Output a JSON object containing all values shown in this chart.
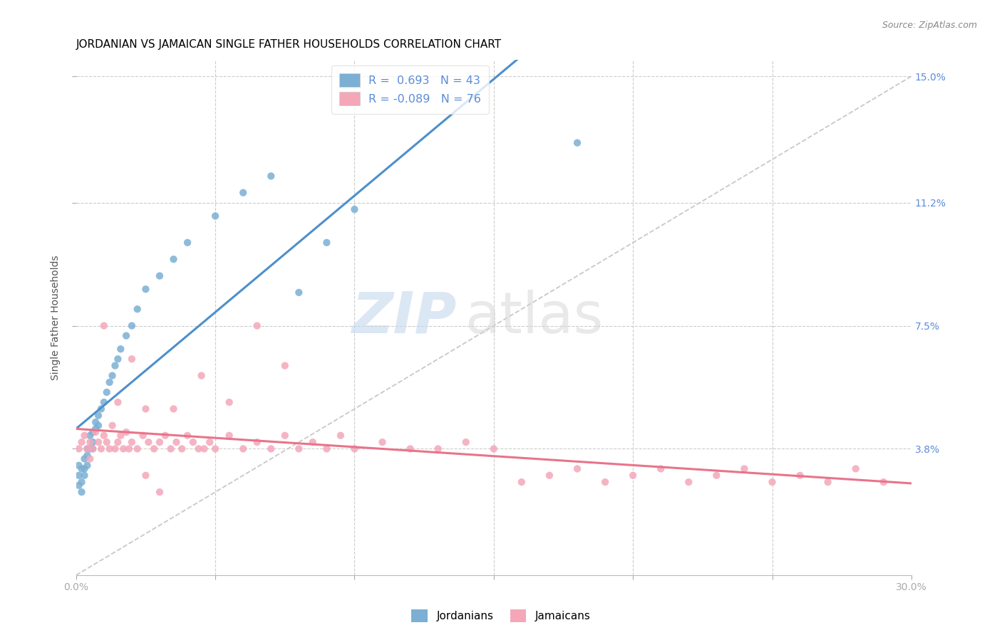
{
  "title": "JORDANIAN VS JAMAICAN SINGLE FATHER HOUSEHOLDS CORRELATION CHART",
  "source": "Source: ZipAtlas.com",
  "ylabel": "Single Father Households",
  "xlabel": "",
  "xlim": [
    0.0,
    0.3
  ],
  "ylim": [
    0.0,
    0.155
  ],
  "ytick_values": [
    0.038,
    0.075,
    0.112,
    0.15
  ],
  "ytick_labels": [
    "3.8%",
    "7.5%",
    "11.2%",
    "15.0%"
  ],
  "legend_r1": "R =  0.693   N = 43",
  "legend_r2": "R = -0.089   N = 76",
  "blue_color": "#7bafd4",
  "pink_color": "#f4a7b9",
  "blue_line_color": "#4d8fcc",
  "pink_line_color": "#e8748a",
  "dashed_line_color": "#c8c8c8",
  "title_fontsize": 11,
  "axis_color": "#5b8dd9",
  "jordanians_x": [
    0.001,
    0.001,
    0.001,
    0.002,
    0.002,
    0.002,
    0.003,
    0.003,
    0.003,
    0.004,
    0.004,
    0.004,
    0.005,
    0.005,
    0.006,
    0.006,
    0.006,
    0.007,
    0.007,
    0.008,
    0.008,
    0.009,
    0.01,
    0.011,
    0.012,
    0.013,
    0.014,
    0.015,
    0.016,
    0.018,
    0.02,
    0.022,
    0.025,
    0.03,
    0.035,
    0.04,
    0.05,
    0.06,
    0.07,
    0.08,
    0.09,
    0.1,
    0.18
  ],
  "jordanians_y": [
    0.027,
    0.03,
    0.033,
    0.025,
    0.028,
    0.032,
    0.032,
    0.03,
    0.035,
    0.033,
    0.036,
    0.038,
    0.038,
    0.042,
    0.04,
    0.043,
    0.038,
    0.044,
    0.046,
    0.045,
    0.048,
    0.05,
    0.052,
    0.055,
    0.058,
    0.06,
    0.063,
    0.065,
    0.068,
    0.072,
    0.075,
    0.08,
    0.086,
    0.09,
    0.095,
    0.1,
    0.108,
    0.115,
    0.12,
    0.085,
    0.1,
    0.11,
    0.13
  ],
  "jamaicans_x": [
    0.001,
    0.002,
    0.003,
    0.004,
    0.005,
    0.006,
    0.007,
    0.008,
    0.009,
    0.01,
    0.011,
    0.012,
    0.013,
    0.014,
    0.015,
    0.016,
    0.017,
    0.018,
    0.019,
    0.02,
    0.022,
    0.024,
    0.026,
    0.028,
    0.03,
    0.032,
    0.034,
    0.036,
    0.038,
    0.04,
    0.042,
    0.044,
    0.046,
    0.048,
    0.05,
    0.055,
    0.06,
    0.065,
    0.07,
    0.075,
    0.08,
    0.085,
    0.09,
    0.095,
    0.1,
    0.11,
    0.12,
    0.13,
    0.14,
    0.15,
    0.16,
    0.17,
    0.18,
    0.19,
    0.2,
    0.21,
    0.22,
    0.23,
    0.24,
    0.25,
    0.26,
    0.27,
    0.28,
    0.29,
    0.025,
    0.035,
    0.045,
    0.055,
    0.065,
    0.075,
    0.005,
    0.01,
    0.015,
    0.02,
    0.025,
    0.03
  ],
  "jamaicans_y": [
    0.038,
    0.04,
    0.042,
    0.038,
    0.04,
    0.038,
    0.043,
    0.04,
    0.038,
    0.042,
    0.04,
    0.038,
    0.045,
    0.038,
    0.04,
    0.042,
    0.038,
    0.043,
    0.038,
    0.04,
    0.038,
    0.042,
    0.04,
    0.038,
    0.04,
    0.042,
    0.038,
    0.04,
    0.038,
    0.042,
    0.04,
    0.038,
    0.038,
    0.04,
    0.038,
    0.042,
    0.038,
    0.04,
    0.038,
    0.042,
    0.038,
    0.04,
    0.038,
    0.042,
    0.038,
    0.04,
    0.038,
    0.038,
    0.04,
    0.038,
    0.028,
    0.03,
    0.032,
    0.028,
    0.03,
    0.032,
    0.028,
    0.03,
    0.032,
    0.028,
    0.03,
    0.028,
    0.032,
    0.028,
    0.05,
    0.05,
    0.06,
    0.052,
    0.075,
    0.063,
    0.035,
    0.075,
    0.052,
    0.065,
    0.03,
    0.025
  ]
}
